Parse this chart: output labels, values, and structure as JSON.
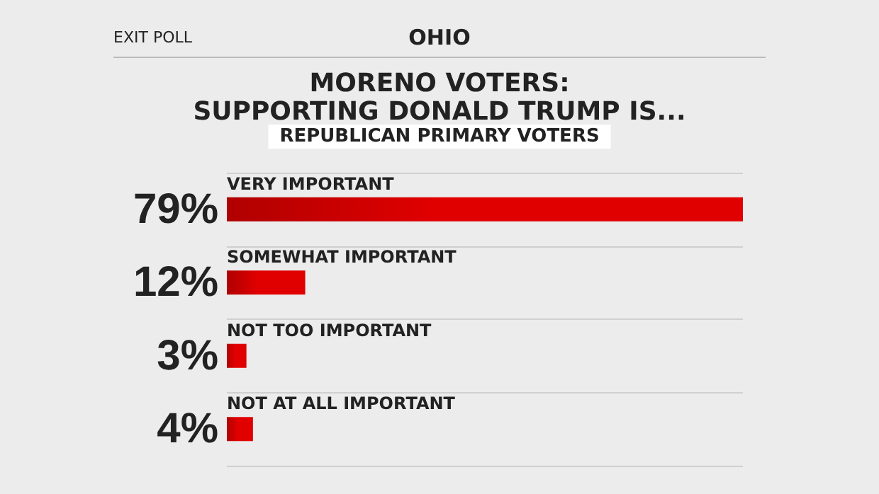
{
  "chart_data": {
    "type": "bar",
    "orientation": "horizontal",
    "title": "MORENO VOTERS:\nSUPPORTING DONALD TRUMP IS...",
    "subtitle": "REPUBLICAN PRIMARY VOTERS",
    "annotations": [
      "EXIT POLL",
      "OHIO"
    ],
    "categories": [
      "VERY IMPORTANT",
      "SOMEWHAT IMPORTANT",
      "NOT TOO IMPORTANT",
      "NOT AT ALL IMPORTANT"
    ],
    "values": [
      79,
      12,
      3,
      4
    ],
    "value_labels": [
      "79%",
      "12%",
      "3%",
      "4%"
    ],
    "color": "#e00000",
    "grid": true
  }
}
